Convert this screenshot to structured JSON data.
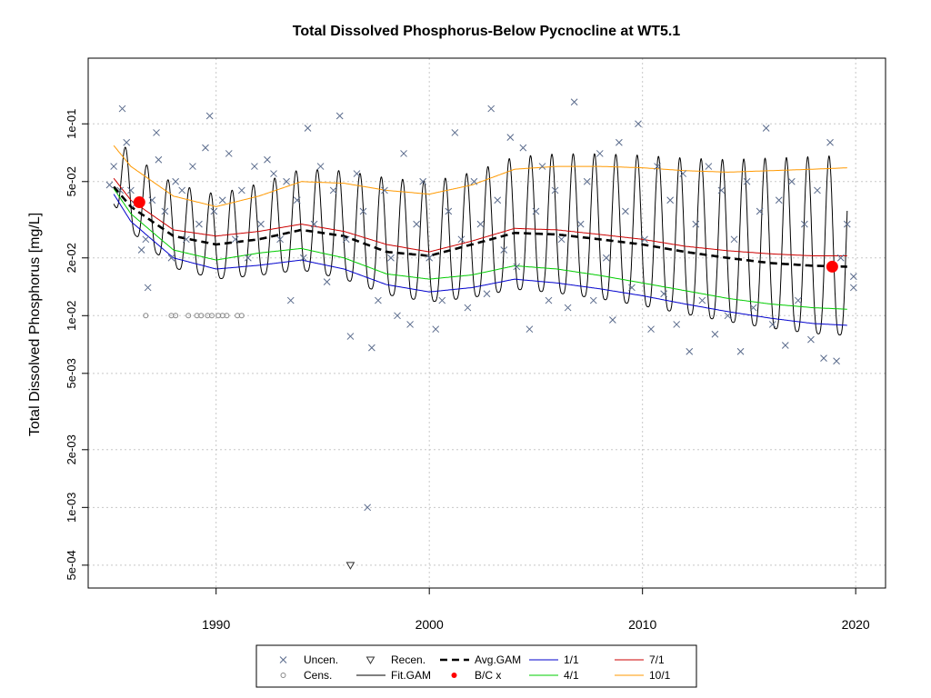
{
  "chart_data": {
    "type": "scatter",
    "title": "Total Dissolved Phosphorus-Below Pycnocline at WT5.1",
    "ylabel": "Total Dissolved Phosphorus [mg/L]",
    "xlabel": "",
    "y_scale": "log",
    "xlim": [
      1984.0,
      2021.4
    ],
    "ylim": [
      0.00038,
      0.22
    ],
    "grid": true,
    "x_ticks": [
      1990,
      2000,
      2010,
      2020
    ],
    "x_tick_labels": [
      "1990",
      "2000",
      "2010",
      "2020"
    ],
    "y_ticks": [
      0.1,
      0.05,
      0.02,
      0.01,
      0.005,
      0.002,
      0.001,
      0.0005
    ],
    "y_tick_labels": [
      "1e-01",
      "5e-02",
      "2e-02",
      "1e-02",
      "5e-03",
      "2e-03",
      "1e-03",
      "5e-04"
    ],
    "legend": {
      "position": "bottom",
      "entries": [
        {
          "label": "Uncen.",
          "symbol": "x",
          "color": "#5a6b8c"
        },
        {
          "label": "Cens.",
          "symbol": "circle",
          "color": "#5a6b8c"
        },
        {
          "label": "Recen.",
          "symbol": "triangle-down",
          "color": "#333333"
        },
        {
          "label": "Fit.GAM",
          "symbol": "line",
          "color": "#000000"
        },
        {
          "label": "Avg.GAM",
          "symbol": "dashed",
          "color": "#000000"
        },
        {
          "label": "B/C x",
          "symbol": "dot",
          "color": "#ff0000"
        },
        {
          "label": "1/1",
          "symbol": "line",
          "color": "#0000cd"
        },
        {
          "label": "4/1",
          "symbol": "line",
          "color": "#00cc00"
        },
        {
          "label": "7/1",
          "symbol": "line",
          "color": "#cc0000"
        },
        {
          "label": "10/1",
          "symbol": "line",
          "color": "#ff9900"
        }
      ]
    },
    "series": [
      {
        "name": "Uncen.",
        "style": "x",
        "points": [
          [
            1985.0,
            0.048
          ],
          [
            1985.2,
            0.06
          ],
          [
            1985.5,
            0.045
          ],
          [
            1985.6,
            0.12
          ],
          [
            1985.8,
            0.08
          ],
          [
            1986.0,
            0.045
          ],
          [
            1986.2,
            0.038
          ],
          [
            1986.5,
            0.022
          ],
          [
            1986.7,
            0.025
          ],
          [
            1986.8,
            0.014
          ],
          [
            1987.0,
            0.04
          ],
          [
            1987.2,
            0.09
          ],
          [
            1987.3,
            0.065
          ],
          [
            1987.6,
            0.035
          ],
          [
            1987.9,
            0.02
          ],
          [
            1988.1,
            0.05
          ],
          [
            1988.4,
            0.045
          ],
          [
            1988.6,
            0.025
          ],
          [
            1988.9,
            0.06
          ],
          [
            1989.2,
            0.03
          ],
          [
            1989.5,
            0.075
          ],
          [
            1989.7,
            0.11
          ],
          [
            1989.9,
            0.035
          ],
          [
            1990.3,
            0.04
          ],
          [
            1990.6,
            0.07
          ],
          [
            1990.9,
            0.025
          ],
          [
            1991.2,
            0.045
          ],
          [
            1991.5,
            0.02
          ],
          [
            1991.8,
            0.06
          ],
          [
            1992.1,
            0.03
          ],
          [
            1992.4,
            0.065
          ],
          [
            1992.7,
            0.055
          ],
          [
            1993.0,
            0.025
          ],
          [
            1993.3,
            0.05
          ],
          [
            1993.5,
            0.012
          ],
          [
            1993.8,
            0.04
          ],
          [
            1994.1,
            0.02
          ],
          [
            1994.3,
            0.095
          ],
          [
            1994.6,
            0.03
          ],
          [
            1994.9,
            0.06
          ],
          [
            1995.2,
            0.015
          ],
          [
            1995.5,
            0.045
          ],
          [
            1995.8,
            0.11
          ],
          [
            1996.1,
            0.025
          ],
          [
            1996.3,
            0.0078
          ],
          [
            1996.6,
            0.055
          ],
          [
            1996.9,
            0.035
          ],
          [
            1997.1,
            0.001
          ],
          [
            1997.3,
            0.0068
          ],
          [
            1997.6,
            0.012
          ],
          [
            1997.9,
            0.045
          ],
          [
            1998.2,
            0.02
          ],
          [
            1998.5,
            0.01
          ],
          [
            1998.8,
            0.07
          ],
          [
            1999.1,
            0.009
          ],
          [
            1999.4,
            0.03
          ],
          [
            1999.7,
            0.05
          ],
          [
            2000.0,
            0.02
          ],
          [
            2000.3,
            0.0085
          ],
          [
            2000.6,
            0.012
          ],
          [
            2000.9,
            0.035
          ],
          [
            2001.2,
            0.09
          ],
          [
            2001.5,
            0.025
          ],
          [
            2001.8,
            0.011
          ],
          [
            2002.1,
            0.05
          ],
          [
            2002.4,
            0.03
          ],
          [
            2002.7,
            0.013
          ],
          [
            2002.9,
            0.12
          ],
          [
            2003.2,
            0.04
          ],
          [
            2003.5,
            0.022
          ],
          [
            2003.8,
            0.085
          ],
          [
            2004.1,
            0.018
          ],
          [
            2004.4,
            0.075
          ],
          [
            2004.7,
            0.0085
          ],
          [
            2005.0,
            0.035
          ],
          [
            2005.3,
            0.06
          ],
          [
            2005.6,
            0.012
          ],
          [
            2005.9,
            0.045
          ],
          [
            2006.2,
            0.025
          ],
          [
            2006.5,
            0.011
          ],
          [
            2006.8,
            0.13
          ],
          [
            2007.1,
            0.03
          ],
          [
            2007.4,
            0.05
          ],
          [
            2007.7,
            0.012
          ],
          [
            2008.0,
            0.07
          ],
          [
            2008.3,
            0.02
          ],
          [
            2008.6,
            0.0095
          ],
          [
            2008.9,
            0.08
          ],
          [
            2009.2,
            0.035
          ],
          [
            2009.5,
            0.014
          ],
          [
            2009.8,
            0.1
          ],
          [
            2010.1,
            0.025
          ],
          [
            2010.4,
            0.0085
          ],
          [
            2010.7,
            0.06
          ],
          [
            2011.0,
            0.013
          ],
          [
            2011.3,
            0.04
          ],
          [
            2011.6,
            0.009
          ],
          [
            2011.9,
            0.055
          ],
          [
            2012.2,
            0.0065
          ],
          [
            2012.5,
            0.03
          ],
          [
            2012.8,
            0.012
          ],
          [
            2013.1,
            0.06
          ],
          [
            2013.4,
            0.008
          ],
          [
            2013.7,
            0.045
          ],
          [
            2014.0,
            0.01
          ],
          [
            2014.3,
            0.025
          ],
          [
            2014.6,
            0.0065
          ],
          [
            2014.9,
            0.05
          ],
          [
            2015.2,
            0.011
          ],
          [
            2015.5,
            0.035
          ],
          [
            2015.8,
            0.095
          ],
          [
            2016.1,
            0.009
          ],
          [
            2016.4,
            0.04
          ],
          [
            2016.7,
            0.007
          ],
          [
            2017.0,
            0.05
          ],
          [
            2017.3,
            0.012
          ],
          [
            2017.6,
            0.03
          ],
          [
            2017.9,
            0.0075
          ],
          [
            2018.2,
            0.045
          ],
          [
            2018.5,
            0.006
          ],
          [
            2018.8,
            0.08
          ],
          [
            2019.1,
            0.0058
          ],
          [
            2019.3,
            0.02
          ],
          [
            2019.6,
            0.03
          ],
          [
            2019.9,
            0.014
          ],
          [
            2019.9,
            0.016
          ]
        ]
      },
      {
        "name": "Cens.",
        "style": "circle",
        "points": [
          [
            1986.7,
            0.01
          ],
          [
            1987.9,
            0.01
          ],
          [
            1988.1,
            0.01
          ],
          [
            1988.7,
            0.01
          ],
          [
            1989.1,
            0.01
          ],
          [
            1989.3,
            0.01
          ],
          [
            1989.6,
            0.01
          ],
          [
            1989.8,
            0.01
          ],
          [
            1990.1,
            0.01
          ],
          [
            1990.3,
            0.01
          ],
          [
            1990.5,
            0.01
          ],
          [
            1991.0,
            0.01
          ],
          [
            1991.2,
            0.01
          ]
        ]
      },
      {
        "name": "Recen.",
        "style": "triangle",
        "points": [
          [
            1996.3,
            0.0005
          ]
        ]
      },
      {
        "name": "B/C x",
        "style": "dot",
        "points": [
          [
            1986.4,
            0.039
          ],
          [
            2018.9,
            0.018
          ]
        ]
      }
    ],
    "curves": {
      "avg_gam": {
        "x": [
          1985.2,
          1986,
          1988,
          1990,
          1992,
          1994,
          1996,
          1998,
          2000,
          2002,
          2004,
          2006,
          2008,
          2010,
          2012,
          2014,
          2016,
          2018,
          2019.6
        ],
        "y": [
          0.047,
          0.037,
          0.026,
          0.0235,
          0.025,
          0.028,
          0.026,
          0.0215,
          0.0205,
          0.0235,
          0.027,
          0.0265,
          0.025,
          0.0235,
          0.0215,
          0.02,
          0.0188,
          0.0182,
          0.018
        ]
      },
      "d1_1": {
        "x": [
          1985.2,
          1986,
          1988,
          1990,
          1992,
          1994,
          1996,
          1998,
          2000,
          2002,
          2004,
          2006,
          2008,
          2010,
          2012,
          2014,
          2016,
          2018,
          2019.6
        ],
        "y": [
          0.043,
          0.031,
          0.02,
          0.0175,
          0.0183,
          0.0195,
          0.0175,
          0.0145,
          0.0133,
          0.014,
          0.0155,
          0.0148,
          0.0138,
          0.0127,
          0.0115,
          0.0105,
          0.0097,
          0.0091,
          0.0089
        ]
      },
      "d4_1": {
        "x": [
          1985.2,
          1986,
          1988,
          1990,
          1992,
          1994,
          1996,
          1998,
          2000,
          2002,
          2004,
          2006,
          2008,
          2010,
          2012,
          2014,
          2016,
          2018,
          2019.6
        ],
        "y": [
          0.046,
          0.034,
          0.022,
          0.0195,
          0.0212,
          0.0224,
          0.02,
          0.0165,
          0.0155,
          0.0163,
          0.0182,
          0.0175,
          0.0162,
          0.0148,
          0.0135,
          0.0123,
          0.0115,
          0.011,
          0.0108
        ]
      },
      "d7_1": {
        "x": [
          1985.2,
          1986,
          1988,
          1990,
          1992,
          1994,
          1996,
          1998,
          2000,
          2002,
          2004,
          2006,
          2008,
          2010,
          2012,
          2014,
          2016,
          2018,
          2019.6
        ],
        "y": [
          0.052,
          0.04,
          0.028,
          0.026,
          0.0275,
          0.03,
          0.0275,
          0.0235,
          0.0215,
          0.0245,
          0.0285,
          0.028,
          0.0265,
          0.025,
          0.023,
          0.0218,
          0.021,
          0.0205,
          0.0205
        ]
      },
      "d10_1": {
        "x": [
          1985.2,
          1986,
          1988,
          1990,
          1992,
          1994,
          1996,
          1998,
          2000,
          2002,
          2004,
          2006,
          2008,
          2010,
          2012,
          2014,
          2016,
          2018,
          2019.6
        ],
        "y": [
          0.077,
          0.06,
          0.042,
          0.037,
          0.042,
          0.05,
          0.049,
          0.045,
          0.043,
          0.048,
          0.058,
          0.06,
          0.06,
          0.059,
          0.057,
          0.056,
          0.057,
          0.058,
          0.059
        ]
      },
      "fit_gam_peak_month": 10
    }
  }
}
